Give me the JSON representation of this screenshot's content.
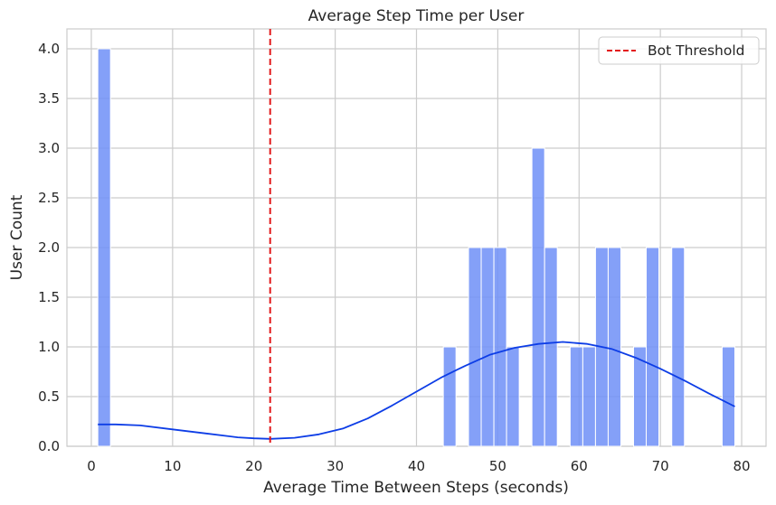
{
  "chart_data": {
    "type": "bar",
    "title": "Average Step Time per User",
    "xlabel": "Average Time Between Steps (seconds)",
    "ylabel": "User Count",
    "xlim": [
      -3.0,
      83.0
    ],
    "ylim": [
      0,
      4.2
    ],
    "xticks": [
      0,
      10,
      20,
      30,
      40,
      50,
      60,
      70,
      80
    ],
    "yticks": [
      0.0,
      0.5,
      1.0,
      1.5,
      2.0,
      2.5,
      3.0,
      3.5,
      4.0
    ],
    "grid": true,
    "legend_position": "top-right",
    "bar_color": "#6e8ff7",
    "histogram": {
      "name": "",
      "bin_width": 1.56,
      "bins": [
        {
          "x0": 0.8,
          "x1": 2.36,
          "count": 4
        },
        {
          "x0": 43.3,
          "x1": 44.86,
          "count": 1
        },
        {
          "x0": 46.4,
          "x1": 47.96,
          "count": 2
        },
        {
          "x0": 47.96,
          "x1": 49.52,
          "count": 2
        },
        {
          "x0": 49.52,
          "x1": 51.08,
          "count": 2
        },
        {
          "x0": 51.08,
          "x1": 52.64,
          "count": 1
        },
        {
          "x0": 54.2,
          "x1": 55.76,
          "count": 3
        },
        {
          "x0": 55.76,
          "x1": 57.32,
          "count": 2
        },
        {
          "x0": 58.9,
          "x1": 60.46,
          "count": 1
        },
        {
          "x0": 60.46,
          "x1": 62.02,
          "count": 1
        },
        {
          "x0": 62.02,
          "x1": 63.58,
          "count": 2
        },
        {
          "x0": 63.58,
          "x1": 65.14,
          "count": 2
        },
        {
          "x0": 66.7,
          "x1": 68.26,
          "count": 1
        },
        {
          "x0": 68.26,
          "x1": 69.82,
          "count": 2
        },
        {
          "x0": 71.4,
          "x1": 72.96,
          "count": 2
        },
        {
          "x0": 77.6,
          "x1": 79.16,
          "count": 1
        }
      ]
    },
    "kde_curve": {
      "color": "#0d3de6",
      "points": [
        [
          0.8,
          0.22
        ],
        [
          3,
          0.22
        ],
        [
          6,
          0.21
        ],
        [
          10,
          0.17
        ],
        [
          14,
          0.13
        ],
        [
          18,
          0.09
        ],
        [
          20,
          0.08
        ],
        [
          22,
          0.075
        ],
        [
          25,
          0.085
        ],
        [
          28,
          0.12
        ],
        [
          31,
          0.18
        ],
        [
          34,
          0.28
        ],
        [
          37,
          0.41
        ],
        [
          40,
          0.55
        ],
        [
          43,
          0.69
        ],
        [
          46,
          0.81
        ],
        [
          49,
          0.92
        ],
        [
          52,
          0.99
        ],
        [
          55,
          1.03
        ],
        [
          58,
          1.05
        ],
        [
          61,
          1.03
        ],
        [
          64,
          0.98
        ],
        [
          67,
          0.89
        ],
        [
          70,
          0.78
        ],
        [
          73,
          0.66
        ],
        [
          76,
          0.53
        ],
        [
          79.16,
          0.4
        ]
      ]
    },
    "threshold": {
      "label": "Bot Threshold",
      "x": 22,
      "color": "#e31a1c",
      "style": "dashed"
    }
  }
}
